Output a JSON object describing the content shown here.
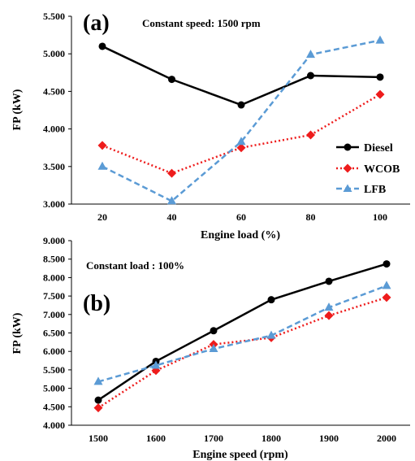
{
  "chart_data": [
    {
      "type": "line",
      "panel_label": "(a)",
      "annotation": "Constant speed: 1500 rpm",
      "xlabel": "Engine load (%)",
      "ylabel": "FP (kW)",
      "categories": [
        "20",
        "40",
        "60",
        "80",
        "100"
      ],
      "ylim": [
        3.0,
        5.5
      ],
      "yticks": [
        "3.000",
        "3.500",
        "4.000",
        "4.500",
        "5.000",
        "5.500"
      ],
      "legend_position": "right",
      "series": [
        {
          "name": "Diesel",
          "color": "#000000",
          "style": "solid",
          "marker": "circle",
          "values": [
            5.1,
            4.66,
            4.32,
            4.71,
            4.69
          ]
        },
        {
          "name": "WCOB",
          "color": "#ee1c1c",
          "style": "dotted",
          "marker": "diamond",
          "values": [
            3.78,
            3.41,
            3.75,
            3.92,
            4.46
          ]
        },
        {
          "name": "LFB",
          "color": "#5b9bd5",
          "style": "dashed",
          "marker": "triangle",
          "values": [
            3.5,
            3.04,
            3.83,
            4.99,
            5.18
          ]
        }
      ]
    },
    {
      "type": "line",
      "panel_label": "(b)",
      "annotation": "Constant load : 100%",
      "xlabel": "Engine speed (rpm)",
      "ylabel": "FP (kW)",
      "categories": [
        "1500",
        "1600",
        "1700",
        "1800",
        "1900",
        "2000"
      ],
      "ylim": [
        4.0,
        9.0
      ],
      "yticks": [
        "4.000",
        "4.500",
        "5.000",
        "5.500",
        "6.000",
        "6.500",
        "7.000",
        "7.500",
        "8.000",
        "8.500",
        "9.000"
      ],
      "series": [
        {
          "name": "Diesel",
          "color": "#000000",
          "style": "solid",
          "marker": "circle",
          "values": [
            4.68,
            5.73,
            6.56,
            7.4,
            7.9,
            8.37
          ]
        },
        {
          "name": "WCOB",
          "color": "#ee1c1c",
          "style": "dotted",
          "marker": "diamond",
          "values": [
            4.47,
            5.48,
            6.19,
            6.37,
            6.97,
            7.46
          ]
        },
        {
          "name": "LFB",
          "color": "#5b9bd5",
          "style": "dashed",
          "marker": "triangle",
          "values": [
            5.18,
            5.62,
            6.07,
            6.43,
            7.19,
            7.78
          ]
        }
      ]
    }
  ]
}
